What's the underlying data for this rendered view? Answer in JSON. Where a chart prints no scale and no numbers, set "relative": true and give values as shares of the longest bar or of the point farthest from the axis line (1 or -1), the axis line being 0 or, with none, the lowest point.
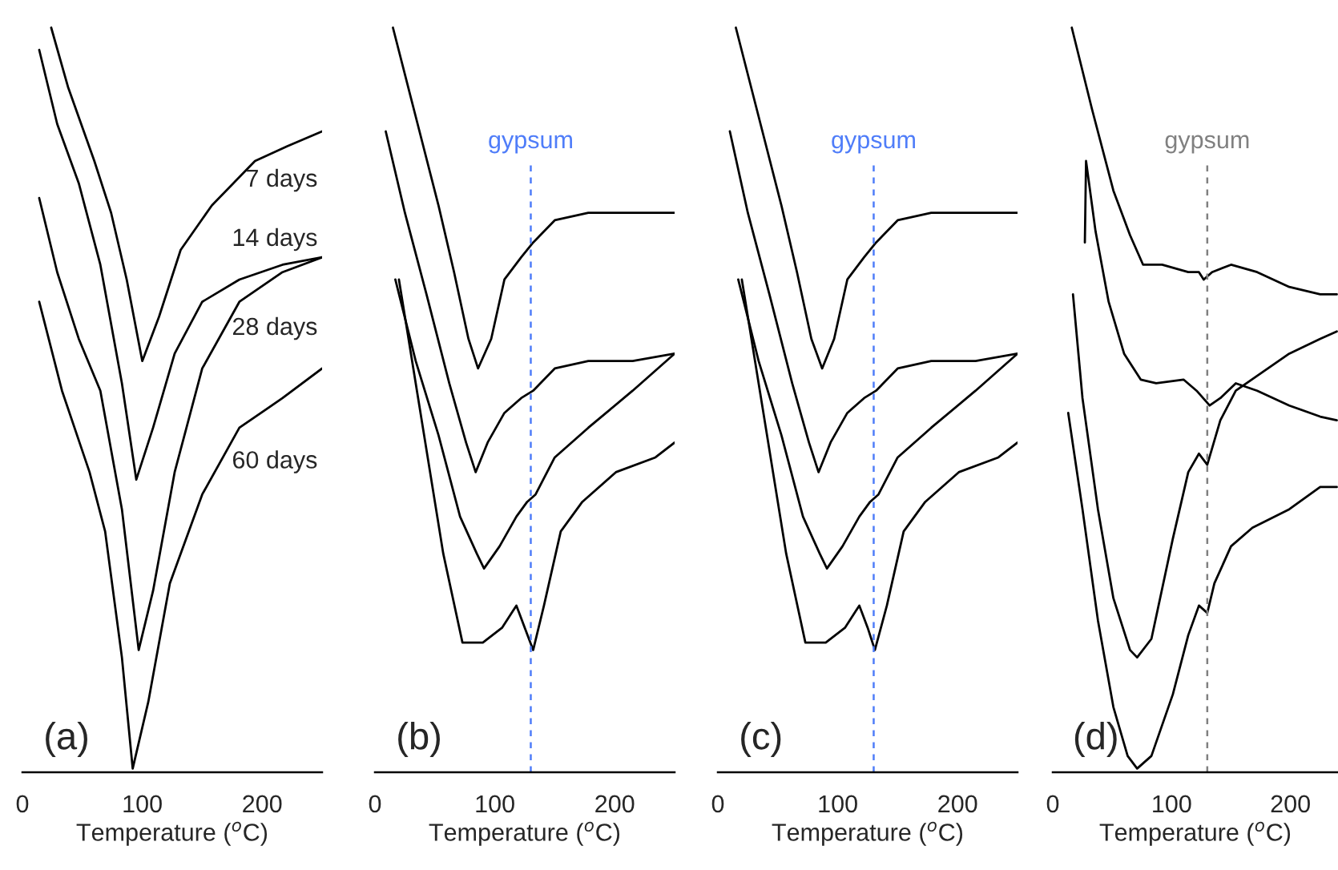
{
  "chart_data": [
    {
      "type": "line",
      "relative": true,
      "xlabel": "Temperature ($^{o}$C)",
      "xlim": [
        0,
        250
      ],
      "xticks": [
        0,
        100,
        200
      ],
      "annotations": [
        "(a)"
      ],
      "series": [
        {
          "name": "7 days",
          "color": "#000000",
          "x": [
            24,
            38,
            60,
            74,
            87,
            100,
            114,
            132,
            158,
            194,
            221,
            250
          ],
          "values": [
            1.0,
            0.92,
            0.82,
            0.75,
            0.66,
            0.55,
            0.61,
            0.7,
            0.76,
            0.82,
            0.84,
            0.86
          ]
        },
        {
          "name": "14 days",
          "color": "#000000",
          "x": [
            14,
            29,
            47,
            65,
            83,
            95,
            109,
            127,
            150,
            181,
            217,
            250
          ],
          "values": [
            0.97,
            0.87,
            0.79,
            0.68,
            0.52,
            0.39,
            0.46,
            0.56,
            0.63,
            0.66,
            0.68,
            0.69
          ]
        },
        {
          "name": "28 days",
          "color": "#000000",
          "x": [
            14,
            29,
            47,
            65,
            83,
            97,
            109,
            127,
            150,
            181,
            217,
            250
          ],
          "values": [
            0.77,
            0.67,
            0.58,
            0.51,
            0.35,
            0.16,
            0.24,
            0.4,
            0.54,
            0.63,
            0.67,
            0.69
          ]
        },
        {
          "name": "60 days",
          "color": "#000000",
          "x": [
            14,
            33,
            56,
            69,
            83,
            92,
            105,
            123,
            150,
            181,
            217,
            250
          ],
          "values": [
            0.63,
            0.51,
            0.4,
            0.32,
            0.15,
            0.0,
            0.09,
            0.25,
            0.37,
            0.46,
            0.5,
            0.54
          ]
        }
      ]
    },
    {
      "type": "line",
      "relative": true,
      "xlabel": "Temperature ($^{o}$C)",
      "xlim": [
        0,
        250
      ],
      "xticks": [
        0,
        100,
        200
      ],
      "annotations": [
        "(b)"
      ],
      "ref_lines": [
        {
          "axis": "x",
          "value": 130,
          "label": "gypsum",
          "color": "#4f7df9",
          "line_style": "dashed"
        }
      ],
      "series": [
        {
          "color": "#000000",
          "x": [
            15,
            34,
            53,
            66,
            78,
            86,
            97,
            108,
            122,
            132,
            150,
            178,
            215,
            250
          ],
          "values": [
            1.0,
            0.88,
            0.76,
            0.67,
            0.58,
            0.54,
            0.58,
            0.66,
            0.69,
            0.71,
            0.74,
            0.75,
            0.75,
            0.75
          ]
        },
        {
          "color": "#000000",
          "x": [
            9,
            25,
            43,
            62,
            76,
            84,
            94,
            108,
            122,
            132,
            150,
            178,
            215,
            250
          ],
          "values": [
            0.86,
            0.75,
            0.64,
            0.52,
            0.44,
            0.4,
            0.44,
            0.48,
            0.5,
            0.51,
            0.54,
            0.55,
            0.55,
            0.56
          ]
        },
        {
          "color": "#000000",
          "x": [
            17,
            34,
            53,
            71,
            85,
            91,
            104,
            118,
            127,
            134,
            150,
            178,
            215,
            250
          ],
          "values": [
            0.66,
            0.55,
            0.45,
            0.34,
            0.29,
            0.27,
            0.3,
            0.34,
            0.36,
            0.37,
            0.42,
            0.46,
            0.51,
            0.56
          ]
        },
        {
          "color": "#000000",
          "x": [
            20,
            39,
            57,
            73,
            90,
            106,
            118,
            125,
            132,
            141,
            155,
            173,
            201,
            234,
            250
          ],
          "values": [
            0.66,
            0.47,
            0.29,
            0.17,
            0.17,
            0.19,
            0.22,
            0.19,
            0.16,
            0.22,
            0.32,
            0.36,
            0.4,
            0.42,
            0.44
          ]
        }
      ]
    },
    {
      "type": "line",
      "relative": true,
      "xlabel": "Temperature ($^{o}$C)",
      "xlim": [
        0,
        250
      ],
      "xticks": [
        0,
        100,
        200
      ],
      "annotations": [
        "(c)"
      ],
      "ref_lines": [
        {
          "axis": "x",
          "value": 130,
          "label": "gypsum",
          "color": "#4f7df9",
          "line_style": "dashed"
        }
      ],
      "series": [
        {
          "color": "#000000",
          "x": [
            15,
            34,
            53,
            66,
            78,
            87,
            97,
            108,
            122,
            132,
            150,
            178,
            215,
            250
          ],
          "values": [
            1.0,
            0.88,
            0.76,
            0.67,
            0.58,
            0.54,
            0.58,
            0.66,
            0.69,
            0.71,
            0.74,
            0.75,
            0.75,
            0.75
          ]
        },
        {
          "color": "#000000",
          "x": [
            10,
            25,
            43,
            62,
            76,
            84,
            94,
            108,
            122,
            132,
            150,
            178,
            215,
            250
          ],
          "values": [
            0.86,
            0.75,
            0.64,
            0.52,
            0.44,
            0.4,
            0.44,
            0.48,
            0.5,
            0.51,
            0.54,
            0.55,
            0.55,
            0.56
          ]
        },
        {
          "color": "#000000",
          "x": [
            17,
            34,
            53,
            71,
            85,
            91,
            104,
            118,
            127,
            134,
            150,
            178,
            215,
            250
          ],
          "values": [
            0.66,
            0.55,
            0.45,
            0.34,
            0.29,
            0.27,
            0.3,
            0.34,
            0.36,
            0.37,
            0.42,
            0.46,
            0.51,
            0.56
          ]
        },
        {
          "color": "#000000",
          "x": [
            20,
            39,
            57,
            73,
            90,
            106,
            118,
            125,
            131,
            141,
            155,
            173,
            201,
            234,
            250
          ],
          "values": [
            0.66,
            0.47,
            0.29,
            0.17,
            0.17,
            0.19,
            0.22,
            0.19,
            0.16,
            0.22,
            0.32,
            0.36,
            0.4,
            0.42,
            0.44
          ]
        }
      ]
    },
    {
      "type": "line",
      "relative": true,
      "xlabel": "Temperature ($^{o}$C)",
      "xlim": [
        0,
        240
      ],
      "xticks": [
        0,
        100,
        200
      ],
      "annotations": [
        "(d)"
      ],
      "ref_lines": [
        {
          "axis": "x",
          "value": 130,
          "label": "gypsum",
          "color": "#808080",
          "line_style": "dashed"
        }
      ],
      "series": [
        {
          "color": "#000000",
          "x": [
            16,
            33,
            51,
            65,
            76,
            92,
            114,
            123,
            127,
            134,
            150,
            172,
            199,
            225,
            239
          ],
          "values": [
            1.0,
            0.89,
            0.78,
            0.72,
            0.68,
            0.68,
            0.67,
            0.67,
            0.66,
            0.67,
            0.68,
            0.67,
            0.65,
            0.64,
            0.64
          ]
        },
        {
          "color": "#000000",
          "x": [
            27,
            28,
            36,
            47,
            60,
            74,
            87,
            110,
            121,
            132,
            141,
            154,
            172,
            199,
            225,
            239
          ],
          "values": [
            0.71,
            0.82,
            0.725,
            0.63,
            0.56,
            0.525,
            0.52,
            0.525,
            0.51,
            0.49,
            0.5,
            0.52,
            0.51,
            0.49,
            0.475,
            0.47
          ]
        },
        {
          "color": "#000000",
          "x": [
            17,
            25,
            38,
            51,
            65,
            71,
            83,
            101,
            114,
            123,
            130,
            141,
            154,
            172,
            199,
            225,
            239
          ],
          "values": [
            0.64,
            0.5,
            0.35,
            0.23,
            0.16,
            0.15,
            0.175,
            0.31,
            0.4,
            0.425,
            0.41,
            0.47,
            0.51,
            0.53,
            0.56,
            0.58,
            0.59
          ]
        },
        {
          "color": "#000000",
          "x": [
            13,
            25,
            38,
            51,
            63,
            71,
            83,
            101,
            114,
            123,
            130,
            136,
            150,
            168,
            199,
            225,
            239
          ],
          "values": [
            0.48,
            0.35,
            0.2,
            0.083,
            0.017,
            0.0,
            0.017,
            0.1,
            0.18,
            0.22,
            0.21,
            0.25,
            0.3,
            0.325,
            0.35,
            0.38,
            0.38
          ]
        }
      ]
    }
  ]
}
